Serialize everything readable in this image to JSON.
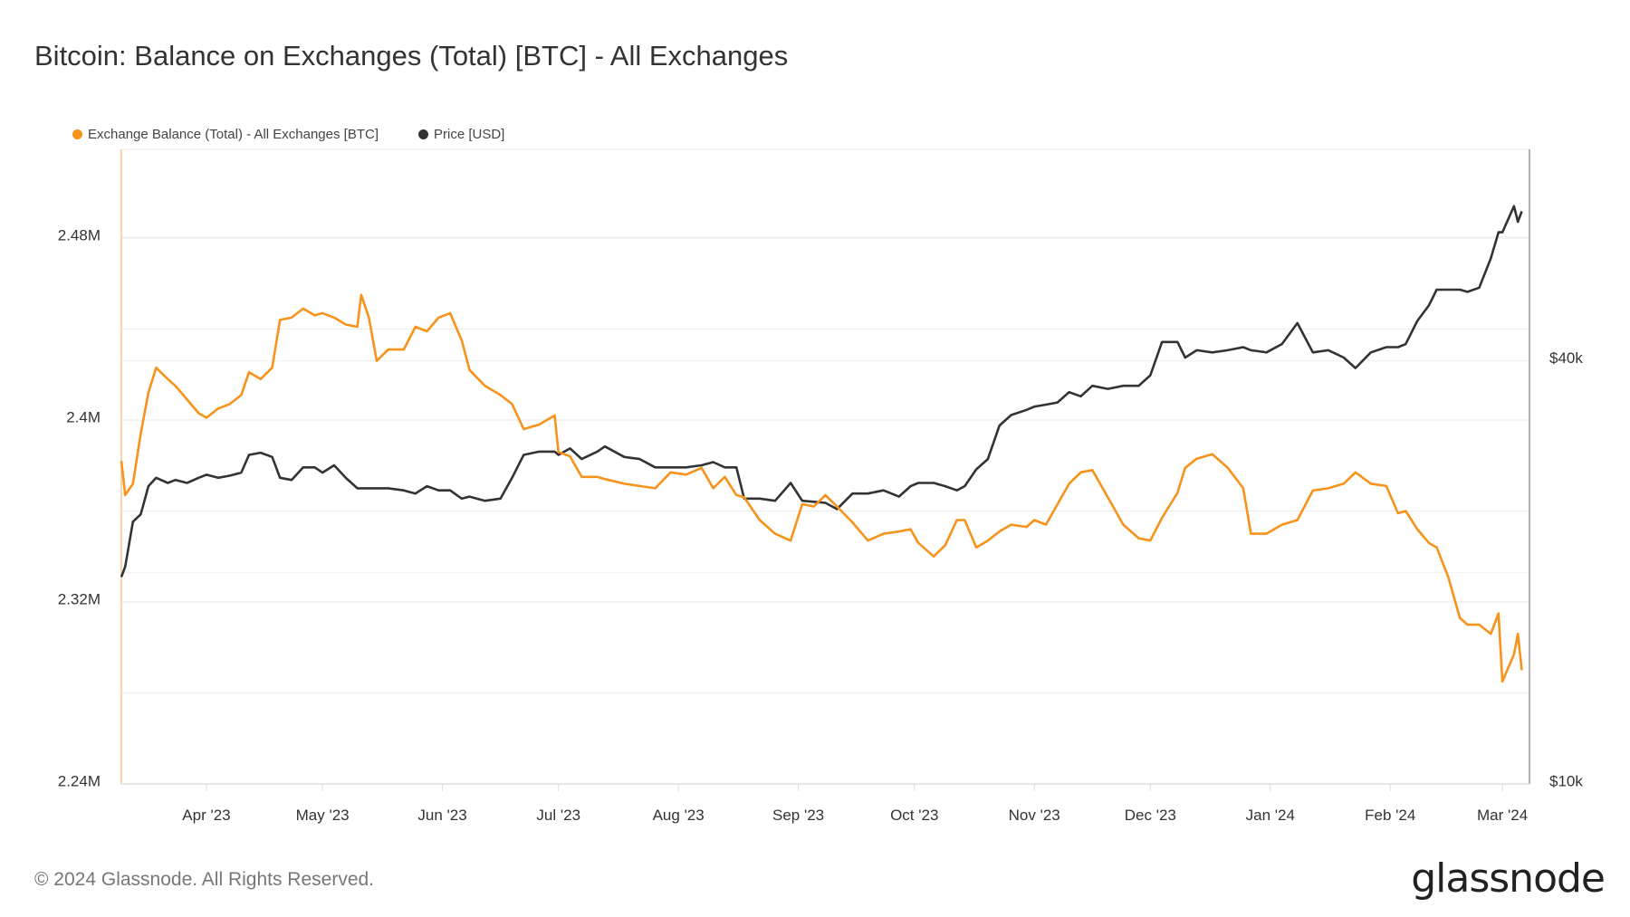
{
  "title": "Bitcoin: Balance on Exchanges (Total) [BTC] - All Exchanges",
  "footer": "© 2024 Glassnode. All Rights Reserved.",
  "logo": "glassnode",
  "chart_data": {
    "type": "line",
    "title": "Bitcoin: Balance on Exchanges (Total) [BTC] - All Exchanges",
    "legend_position": "top-left",
    "grid": true,
    "x_ticks": [
      {
        "label": "Apr '23",
        "date": "2023-04-01"
      },
      {
        "label": "May '23",
        "date": "2023-05-01"
      },
      {
        "label": "Jun '23",
        "date": "2023-06-01"
      },
      {
        "label": "Jul '23",
        "date": "2023-07-01"
      },
      {
        "label": "Aug '23",
        "date": "2023-08-01"
      },
      {
        "label": "Sep '23",
        "date": "2023-09-01"
      },
      {
        "label": "Oct '23",
        "date": "2023-10-01"
      },
      {
        "label": "Nov '23",
        "date": "2023-11-01"
      },
      {
        "label": "Dec '23",
        "date": "2023-12-01"
      },
      {
        "label": "Jan '24",
        "date": "2024-01-01"
      },
      {
        "label": "Feb '24",
        "date": "2024-02-01"
      },
      {
        "label": "Mar '24",
        "date": "2024-03-01"
      }
    ],
    "xlim": [
      "2023-03-10",
      "2024-03-08"
    ],
    "y_left": {
      "scale": "linear",
      "unit": "M BTC",
      "lim": [
        2.24,
        2.519
      ],
      "ticks": [
        {
          "label": "2.24M",
          "value": 2.24
        },
        {
          "label": "2.32M",
          "value": 2.32
        },
        {
          "label": "2.4M",
          "value": 2.4
        },
        {
          "label": "2.48M",
          "value": 2.48
        }
      ]
    },
    "y_right": {
      "scale": "log",
      "unit": "USD",
      "lim": [
        10000,
        80000
      ],
      "ticks": [
        {
          "label": "$10k",
          "value": 10000
        },
        {
          "label": "$40k",
          "value": 40000
        }
      ]
    },
    "dates": [
      "2023-03-10",
      "2023-03-11",
      "2023-03-13",
      "2023-03-15",
      "2023-03-17",
      "2023-03-19",
      "2023-03-22",
      "2023-03-24",
      "2023-03-27",
      "2023-03-30",
      "2023-04-01",
      "2023-04-04",
      "2023-04-07",
      "2023-04-10",
      "2023-04-12",
      "2023-04-15",
      "2023-04-18",
      "2023-04-20",
      "2023-04-23",
      "2023-04-26",
      "2023-04-29",
      "2023-05-01",
      "2023-05-04",
      "2023-05-07",
      "2023-05-10",
      "2023-05-11",
      "2023-05-13",
      "2023-05-15",
      "2023-05-18",
      "2023-05-22",
      "2023-05-25",
      "2023-05-28",
      "2023-05-31",
      "2023-06-03",
      "2023-06-06",
      "2023-06-08",
      "2023-06-12",
      "2023-06-16",
      "2023-06-19",
      "2023-06-22",
      "2023-06-26",
      "2023-06-30",
      "2023-07-01",
      "2023-07-04",
      "2023-07-07",
      "2023-07-11",
      "2023-07-13",
      "2023-07-18",
      "2023-07-22",
      "2023-07-26",
      "2023-07-30",
      "2023-08-03",
      "2023-08-07",
      "2023-08-10",
      "2023-08-13",
      "2023-08-16",
      "2023-08-18",
      "2023-08-22",
      "2023-08-26",
      "2023-08-30",
      "2023-09-02",
      "2023-09-05",
      "2023-09-08",
      "2023-09-11",
      "2023-09-15",
      "2023-09-19",
      "2023-09-23",
      "2023-09-27",
      "2023-09-30",
      "2023-10-02",
      "2023-10-06",
      "2023-10-09",
      "2023-10-12",
      "2023-10-14",
      "2023-10-17",
      "2023-10-20",
      "2023-10-23",
      "2023-10-26",
      "2023-10-30",
      "2023-11-01",
      "2023-11-04",
      "2023-11-07",
      "2023-11-10",
      "2023-11-13",
      "2023-11-16",
      "2023-11-20",
      "2023-11-24",
      "2023-11-28",
      "2023-12-01",
      "2023-12-04",
      "2023-12-08",
      "2023-12-10",
      "2023-12-13",
      "2023-12-17",
      "2023-12-21",
      "2023-12-25",
      "2023-12-27",
      "2023-12-31",
      "2024-01-04",
      "2024-01-08",
      "2024-01-12",
      "2024-01-16",
      "2024-01-20",
      "2024-01-23",
      "2024-01-27",
      "2024-01-31",
      "2024-02-03",
      "2024-02-05",
      "2024-02-08",
      "2024-02-11",
      "2024-02-13",
      "2024-02-16",
      "2024-02-19",
      "2024-02-21",
      "2024-02-24",
      "2024-02-27",
      "2024-02-29",
      "2024-03-01",
      "2024-03-04",
      "2024-03-05",
      "2024-03-06"
    ],
    "series": [
      {
        "name": "Exchange Balance (Total) - All Exchanges [BTC]",
        "axis": "left",
        "color": "#f7931a",
        "unit": "M BTC",
        "values": [
          2.382,
          2.367,
          2.372,
          2.394,
          2.412,
          2.423,
          2.418,
          2.415,
          2.409,
          2.403,
          2.401,
          2.405,
          2.407,
          2.411,
          2.421,
          2.418,
          2.423,
          2.444,
          2.445,
          2.449,
          2.446,
          2.447,
          2.445,
          2.442,
          2.441,
          2.455,
          2.445,
          2.426,
          2.431,
          2.431,
          2.441,
          2.439,
          2.445,
          2.447,
          2.435,
          2.422,
          2.415,
          2.411,
          2.407,
          2.396,
          2.398,
          2.402,
          2.386,
          2.384,
          2.375,
          2.375,
          2.374,
          2.372,
          2.371,
          2.37,
          2.377,
          2.376,
          2.379,
          2.37,
          2.375,
          2.367,
          2.366,
          2.356,
          2.35,
          2.347,
          2.363,
          2.362,
          2.367,
          2.362,
          2.355,
          2.347,
          2.35,
          2.351,
          2.352,
          2.346,
          2.34,
          2.345,
          2.356,
          2.356,
          2.344,
          2.347,
          2.351,
          2.354,
          2.353,
          2.356,
          2.354,
          2.363,
          2.372,
          2.377,
          2.378,
          2.366,
          2.354,
          2.348,
          2.347,
          2.357,
          2.368,
          2.379,
          2.383,
          2.385,
          2.379,
          2.37,
          2.35,
          2.35,
          2.354,
          2.356,
          2.369,
          2.37,
          2.372,
          2.377,
          2.372,
          2.371,
          2.359,
          2.36,
          2.352,
          2.346,
          2.344,
          2.331,
          2.313,
          2.31,
          2.31,
          2.306,
          2.315,
          2.285,
          2.297,
          2.306,
          2.29
        ]
      },
      {
        "name": "Price [USD]",
        "axis": "right",
        "color": "#333333",
        "unit": "USD",
        "values": [
          19700,
          20390,
          23620,
          24190,
          26530,
          27270,
          26810,
          27080,
          26810,
          27270,
          27550,
          27270,
          27460,
          27740,
          29400,
          29610,
          29200,
          27270,
          27080,
          28220,
          28220,
          27740,
          28410,
          27270,
          26350,
          26350,
          26350,
          26350,
          26350,
          26170,
          25900,
          26530,
          26170,
          26170,
          25470,
          25640,
          25290,
          25470,
          27270,
          29400,
          29710,
          29710,
          29400,
          30020,
          29000,
          29710,
          30220,
          29200,
          29000,
          28220,
          28220,
          28220,
          28410,
          28710,
          28220,
          28220,
          25470,
          25470,
          25290,
          26810,
          25290,
          25210,
          25120,
          24610,
          25900,
          25900,
          26170,
          25640,
          26530,
          26810,
          26810,
          26530,
          26170,
          26530,
          28030,
          29000,
          32360,
          33490,
          34070,
          34430,
          34660,
          34900,
          36110,
          35620,
          36860,
          36490,
          36860,
          36860,
          38150,
          42560,
          42560,
          40440,
          41420,
          41130,
          41420,
          41840,
          41420,
          41130,
          42270,
          45270,
          41130,
          41420,
          40440,
          39070,
          41130,
          41840,
          41840,
          42270,
          45580,
          47970,
          50510,
          50510,
          50510,
          50160,
          50850,
          55980,
          60970,
          60970,
          66430,
          63100,
          65310
        ]
      }
    ]
  }
}
